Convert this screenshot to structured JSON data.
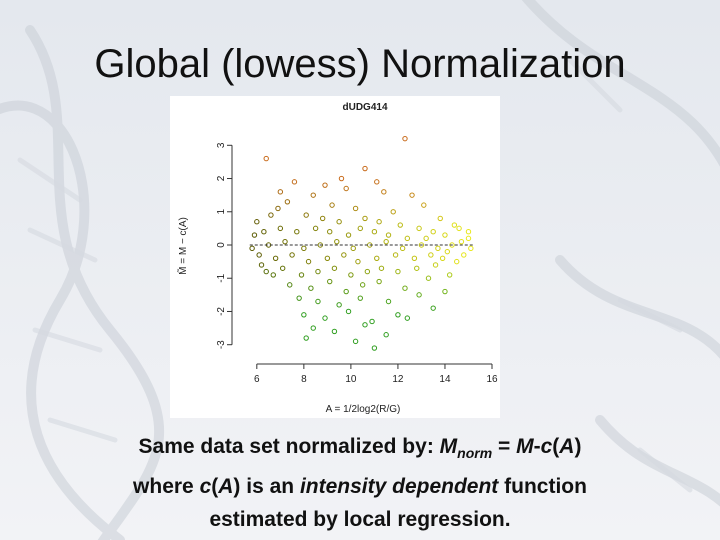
{
  "slide": {
    "title": "Global (lowess) Normalization",
    "caption": {
      "line1": {
        "text1": "Same data set normalized by: ",
        "m_var": "M",
        "m_sub": "norm",
        "text2": " = ",
        "m2": "M",
        "text3": "-",
        "c": "c",
        "text4": "(",
        "a": "A",
        "text5": ")"
      },
      "line2": {
        "text1": "where ",
        "c": "c",
        "text2": "(",
        "a": "A",
        "text3": ") is an ",
        "italic": "intensity dependent",
        "text4": " function"
      },
      "line3": "estimated by local regression."
    }
  },
  "chart_data": {
    "type": "scatter",
    "title": "dUDG414",
    "xlabel": "A = 1/2log2(R/G)",
    "ylabel": "M̃ = M − c(A)",
    "xlim": [
      5.2,
      16
    ],
    "ylim": [
      -3.4,
      3.4
    ],
    "xticks": [
      "6",
      "8",
      "10",
      "12",
      "14",
      "16"
    ],
    "yticks": [
      "-3",
      "-2",
      "-1",
      "0",
      "1",
      "2",
      "3"
    ],
    "grid": false,
    "color_low_A": "#5a5a00",
    "color_mid_neg": "#2f9e1f",
    "color_high_A": "#e8e81a",
    "color_pos": "#c86a1a",
    "reference_line": {
      "y": 0,
      "x_start": 5.7,
      "x_end": 15.2,
      "style": "dashed"
    },
    "points": [
      {
        "x": 12.3,
        "y": 3.2
      },
      {
        "x": 6.4,
        "y": 2.6
      },
      {
        "x": 10.6,
        "y": 2.3
      },
      {
        "x": 7.6,
        "y": 1.9
      },
      {
        "x": 8.9,
        "y": 1.8
      },
      {
        "x": 9.8,
        "y": 1.7
      },
      {
        "x": 8.4,
        "y": 1.5
      },
      {
        "x": 11.4,
        "y": 1.6
      },
      {
        "x": 12.6,
        "y": 1.5
      },
      {
        "x": 13.1,
        "y": 1.2
      },
      {
        "x": 6.9,
        "y": 1.1
      },
      {
        "x": 7.3,
        "y": 1.3
      },
      {
        "x": 9.2,
        "y": 1.2
      },
      {
        "x": 10.2,
        "y": 1.1
      },
      {
        "x": 11.8,
        "y": 1.0
      },
      {
        "x": 13.8,
        "y": 0.8
      },
      {
        "x": 14.4,
        "y": 0.6
      },
      {
        "x": 15.0,
        "y": 0.4
      },
      {
        "x": 6.0,
        "y": 0.7
      },
      {
        "x": 6.6,
        "y": 0.9
      },
      {
        "x": 8.1,
        "y": 0.9
      },
      {
        "x": 8.8,
        "y": 0.8
      },
      {
        "x": 9.5,
        "y": 0.7
      },
      {
        "x": 10.6,
        "y": 0.8
      },
      {
        "x": 11.2,
        "y": 0.7
      },
      {
        "x": 12.1,
        "y": 0.6
      },
      {
        "x": 12.9,
        "y": 0.5
      },
      {
        "x": 13.5,
        "y": 0.4
      },
      {
        "x": 14.0,
        "y": 0.3
      },
      {
        "x": 5.9,
        "y": 0.3
      },
      {
        "x": 6.3,
        "y": 0.4
      },
      {
        "x": 7.0,
        "y": 0.5
      },
      {
        "x": 7.7,
        "y": 0.4
      },
      {
        "x": 8.5,
        "y": 0.5
      },
      {
        "x": 9.1,
        "y": 0.4
      },
      {
        "x": 9.9,
        "y": 0.3
      },
      {
        "x": 10.4,
        "y": 0.5
      },
      {
        "x": 11.0,
        "y": 0.4
      },
      {
        "x": 11.6,
        "y": 0.3
      },
      {
        "x": 12.4,
        "y": 0.2
      },
      {
        "x": 13.2,
        "y": 0.2
      },
      {
        "x": 14.7,
        "y": 0.1
      },
      {
        "x": 5.8,
        "y": -0.1
      },
      {
        "x": 6.5,
        "y": 0.0
      },
      {
        "x": 7.2,
        "y": 0.1
      },
      {
        "x": 8.0,
        "y": -0.1
      },
      {
        "x": 8.7,
        "y": 0.0
      },
      {
        "x": 9.4,
        "y": 0.1
      },
      {
        "x": 10.1,
        "y": -0.1
      },
      {
        "x": 10.8,
        "y": 0.0
      },
      {
        "x": 11.5,
        "y": 0.1
      },
      {
        "x": 12.2,
        "y": -0.1
      },
      {
        "x": 13.0,
        "y": 0.0
      },
      {
        "x": 13.7,
        "y": -0.1
      },
      {
        "x": 14.3,
        "y": 0.0
      },
      {
        "x": 15.1,
        "y": -0.1
      },
      {
        "x": 6.1,
        "y": -0.3
      },
      {
        "x": 6.8,
        "y": -0.4
      },
      {
        "x": 7.5,
        "y": -0.3
      },
      {
        "x": 8.2,
        "y": -0.5
      },
      {
        "x": 9.0,
        "y": -0.4
      },
      {
        "x": 9.7,
        "y": -0.3
      },
      {
        "x": 10.3,
        "y": -0.5
      },
      {
        "x": 11.1,
        "y": -0.4
      },
      {
        "x": 11.9,
        "y": -0.3
      },
      {
        "x": 12.7,
        "y": -0.4
      },
      {
        "x": 13.4,
        "y": -0.3
      },
      {
        "x": 14.1,
        "y": -0.2
      },
      {
        "x": 14.8,
        "y": -0.3
      },
      {
        "x": 6.4,
        "y": -0.8
      },
      {
        "x": 7.1,
        "y": -0.7
      },
      {
        "x": 7.9,
        "y": -0.9
      },
      {
        "x": 8.6,
        "y": -0.8
      },
      {
        "x": 9.3,
        "y": -0.7
      },
      {
        "x": 10.0,
        "y": -0.9
      },
      {
        "x": 10.7,
        "y": -0.8
      },
      {
        "x": 11.3,
        "y": -0.7
      },
      {
        "x": 12.0,
        "y": -0.8
      },
      {
        "x": 12.8,
        "y": -0.7
      },
      {
        "x": 13.6,
        "y": -0.6
      },
      {
        "x": 14.5,
        "y": -0.5
      },
      {
        "x": 7.4,
        "y": -1.2
      },
      {
        "x": 8.3,
        "y": -1.3
      },
      {
        "x": 9.1,
        "y": -1.1
      },
      {
        "x": 9.8,
        "y": -1.4
      },
      {
        "x": 10.5,
        "y": -1.2
      },
      {
        "x": 11.2,
        "y": -1.1
      },
      {
        "x": 12.3,
        "y": -1.3
      },
      {
        "x": 13.3,
        "y": -1.0
      },
      {
        "x": 14.2,
        "y": -0.9
      },
      {
        "x": 7.8,
        "y": -1.6
      },
      {
        "x": 8.6,
        "y": -1.7
      },
      {
        "x": 9.5,
        "y": -1.8
      },
      {
        "x": 10.4,
        "y": -1.6
      },
      {
        "x": 11.6,
        "y": -1.7
      },
      {
        "x": 12.9,
        "y": -1.5
      },
      {
        "x": 14.0,
        "y": -1.4
      },
      {
        "x": 8.0,
        "y": -2.1
      },
      {
        "x": 8.9,
        "y": -2.2
      },
      {
        "x": 9.9,
        "y": -2.0
      },
      {
        "x": 10.9,
        "y": -2.3
      },
      {
        "x": 12.0,
        "y": -2.1
      },
      {
        "x": 13.5,
        "y": -1.9
      },
      {
        "x": 8.4,
        "y": -2.5
      },
      {
        "x": 9.3,
        "y": -2.6
      },
      {
        "x": 10.6,
        "y": -2.4
      },
      {
        "x": 11.5,
        "y": -2.7
      },
      {
        "x": 8.1,
        "y": -2.8
      },
      {
        "x": 10.2,
        "y": -2.9
      },
      {
        "x": 11.0,
        "y": -3.1
      },
      {
        "x": 12.4,
        "y": -2.2
      },
      {
        "x": 6.7,
        "y": -0.9
      },
      {
        "x": 6.2,
        "y": -0.6
      },
      {
        "x": 14.6,
        "y": 0.5
      },
      {
        "x": 15.0,
        "y": 0.2
      },
      {
        "x": 13.9,
        "y": -0.4
      },
      {
        "x": 7.0,
        "y": 1.6
      },
      {
        "x": 9.6,
        "y": 2.0
      },
      {
        "x": 11.1,
        "y": 1.9
      }
    ]
  }
}
